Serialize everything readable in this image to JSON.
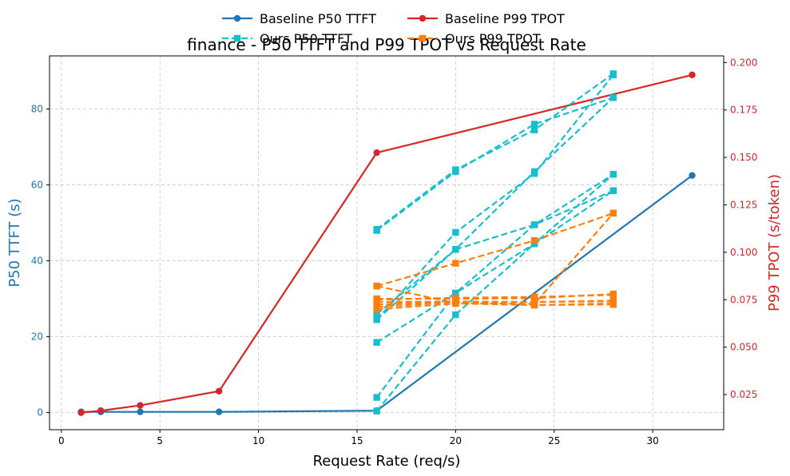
{
  "chart_data": {
    "type": "line",
    "title": "finance - P50 TTFT and P99 TPOT vs Request Rate",
    "xlabel": "Request Rate (req/s)",
    "ylabel_left": "P50 TTFT (s)",
    "ylabel_right": "P99 TPOT (s/token)",
    "xlim": [
      -0.6,
      33.6
    ],
    "ylim_left": [
      -4.5,
      94
    ],
    "ylim_right": [
      0.0065,
      0.2035
    ],
    "xticks": [
      0,
      5,
      10,
      15,
      20,
      25,
      30
    ],
    "yticks_left": [
      0,
      20,
      40,
      60,
      80
    ],
    "yticks_right": [
      0.025,
      0.05,
      0.075,
      0.1,
      0.125,
      0.15,
      0.175,
      0.2
    ],
    "ytick_labels_right": [
      "0.025",
      "0.050",
      "0.075",
      "0.100",
      "0.125",
      "0.150",
      "0.175",
      "0.200"
    ],
    "grid": true,
    "legend_position": "top-center",
    "colors": {
      "baseline_p50": "#1f77b4",
      "baseline_p99": "#d62728",
      "ours_p50": "#17becf",
      "ours_p99": "#ff7f0e",
      "left_axis": "#1f77b4",
      "right_axis": "#d62728"
    },
    "legend": [
      {
        "label": "Baseline P50 TTFT",
        "color": "#1f77b4",
        "style": "solid",
        "marker": "circle"
      },
      {
        "label": "Baseline P99 TPOT",
        "color": "#d62728",
        "style": "solid",
        "marker": "circle"
      },
      {
        "label": "Ours P50 TTFT",
        "color": "#17becf",
        "style": "dashed",
        "marker": "square"
      },
      {
        "label": "Ours P99 TPOT",
        "color": "#ff7f0e",
        "style": "dashed",
        "marker": "square"
      }
    ],
    "series": [
      {
        "name": "Baseline P50 TTFT",
        "axis": "left",
        "color": "#1f77b4",
        "style": "solid",
        "marker": "circle",
        "x": [
          1,
          2,
          4,
          8,
          16,
          32
        ],
        "y": [
          0.2,
          0.2,
          0.2,
          0.2,
          0.5,
          62.5
        ]
      },
      {
        "name": "Baseline P99 TPOT",
        "axis": "right",
        "color": "#d62728",
        "style": "solid",
        "marker": "circle",
        "x": [
          1,
          2,
          4,
          8,
          16,
          32
        ],
        "y": [
          0.0155,
          0.0165,
          0.0193,
          0.0268,
          0.1525,
          0.1935
        ]
      },
      {
        "name": "Ours P50 TTFT",
        "axis": "left",
        "color": "#17becf",
        "style": "dashed",
        "marker": "square",
        "x": [
          16,
          20,
          24,
          28
        ],
        "y": [
          48.3,
          64.0,
          74.5,
          89.3
        ]
      },
      {
        "axis": "left",
        "color": "#17becf",
        "style": "dashed",
        "marker": "square",
        "x": [
          16,
          20,
          24,
          28
        ],
        "y": [
          48.0,
          63.5,
          76.0,
          83.0
        ]
      },
      {
        "axis": "left",
        "color": "#17becf",
        "style": "dashed",
        "marker": "square",
        "x": [
          16,
          20,
          24,
          28
        ],
        "y": [
          24.5,
          47.5,
          63.0,
          89.0
        ]
      },
      {
        "axis": "left",
        "color": "#17becf",
        "style": "dashed",
        "marker": "square",
        "x": [
          16,
          20,
          24,
          28
        ],
        "y": [
          26.0,
          43.0,
          63.5,
          83.0
        ]
      },
      {
        "axis": "left",
        "color": "#17becf",
        "style": "dashed",
        "marker": "square",
        "x": [
          16,
          20,
          24,
          28
        ],
        "y": [
          18.5,
          31.5,
          49.5,
          62.8
        ]
      },
      {
        "axis": "left",
        "color": "#17becf",
        "style": "dashed",
        "marker": "square",
        "x": [
          16,
          20,
          24,
          28
        ],
        "y": [
          24.5,
          43.0,
          49.5,
          58.5
        ]
      },
      {
        "axis": "left",
        "color": "#17becf",
        "style": "dashed",
        "marker": "square",
        "x": [
          16,
          20,
          24,
          28
        ],
        "y": [
          4.0,
          31.5,
          44.5,
          62.8
        ]
      },
      {
        "axis": "left",
        "color": "#17becf",
        "style": "dashed",
        "marker": "square",
        "x": [
          16,
          20,
          24,
          28
        ],
        "y": [
          0.4,
          25.8,
          44.5,
          58.5
        ]
      },
      {
        "name": "Ours P99 TPOT",
        "axis": "right",
        "color": "#ff7f0e",
        "style": "dashed",
        "marker": "square",
        "x": [
          16,
          20,
          24,
          28
        ],
        "y": [
          0.0822,
          0.0942,
          0.1062,
          0.1206
        ]
      },
      {
        "axis": "right",
        "color": "#ff7f0e",
        "style": "dashed",
        "marker": "square",
        "x": [
          16,
          20,
          24,
          28
        ],
        "y": [
          0.0822,
          0.0732,
          0.0728,
          0.1206
        ]
      },
      {
        "axis": "right",
        "color": "#ff7f0e",
        "style": "dashed",
        "marker": "square",
        "x": [
          16,
          20,
          24,
          28
        ],
        "y": [
          0.0755,
          0.0755,
          0.0758,
          0.078
        ]
      },
      {
        "axis": "right",
        "color": "#ff7f0e",
        "style": "dashed",
        "marker": "square",
        "x": [
          16,
          20,
          24,
          28
        ],
        "y": [
          0.075,
          0.076,
          0.0765,
          0.0775
        ]
      },
      {
        "axis": "right",
        "color": "#ff7f0e",
        "style": "dashed",
        "marker": "square",
        "x": [
          16,
          20,
          24,
          28
        ],
        "y": [
          0.0738,
          0.074,
          0.0738,
          0.0745
        ]
      },
      {
        "axis": "right",
        "color": "#ff7f0e",
        "style": "dashed",
        "marker": "square",
        "x": [
          16,
          20,
          24,
          28
        ],
        "y": [
          0.0725,
          0.074,
          0.0738,
          0.0742
        ]
      },
      {
        "axis": "right",
        "color": "#ff7f0e",
        "style": "dashed",
        "marker": "square",
        "x": [
          16,
          20,
          24,
          28
        ],
        "y": [
          0.0712,
          0.0738,
          0.0722,
          0.073
        ]
      },
      {
        "axis": "right",
        "color": "#ff7f0e",
        "style": "dashed",
        "marker": "square",
        "x": [
          16,
          20,
          24,
          28
        ],
        "y": [
          0.07,
          0.073,
          0.0722,
          0.0725
        ]
      }
    ]
  }
}
